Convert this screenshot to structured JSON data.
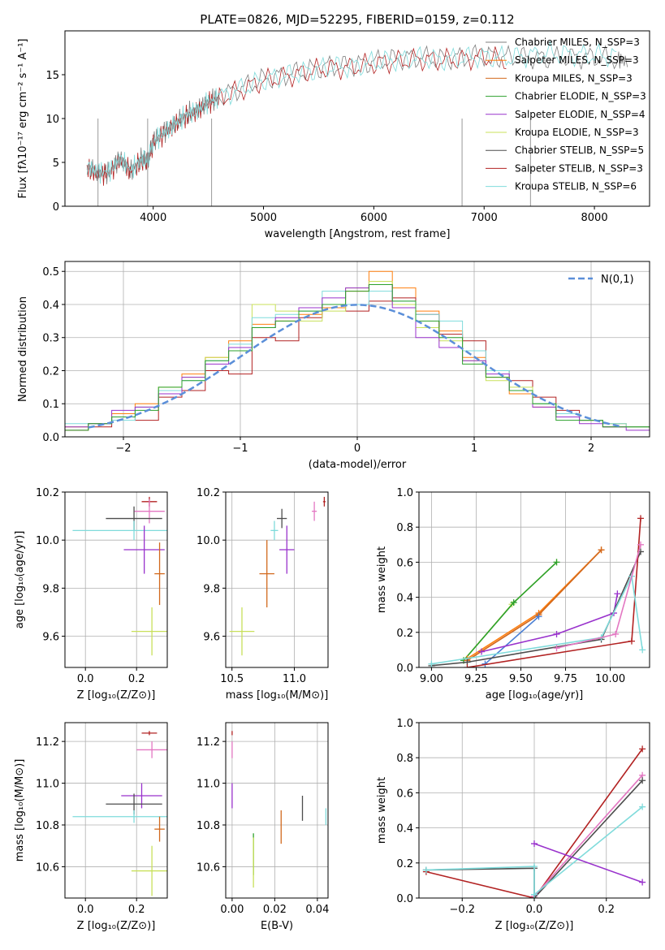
{
  "figure": {
    "title": "PLATE=0826, MJD=52295, FIBERID=0159, z=0.112"
  },
  "colors": {
    "gray": "#7f7f7f",
    "orange": "#ff7f0e",
    "dark_orange": "#d2691e",
    "green": "#2ca02c",
    "purple": "#9932cc",
    "lime": "#c8e05a",
    "dark_gray": "#4d4d4d",
    "dark_red": "#b22222",
    "cyan": "#7fdbdb",
    "pink": "#e377c2",
    "blue": "#4a7fd4",
    "gauss": "#5b8fd9",
    "grid": "#b0b0b0"
  },
  "chart_data": [
    {
      "id": "spectrum",
      "type": "line",
      "xlabel": "wavelength [Angstrom, rest frame]",
      "ylabel": "Flux [fλ10⁻¹⁷ erg cm⁻² s⁻¹ A⁻¹]",
      "xlim": [
        3200,
        8500
      ],
      "ylim": [
        0,
        20
      ],
      "xticks": [
        4000,
        5000,
        6000,
        7000,
        8000
      ],
      "yticks": [
        0,
        5,
        10,
        15
      ],
      "grid": false,
      "legend_position": "upper-right",
      "legend": [
        {
          "label": "Chabrier MILES, N_SSP=3",
          "color": "#7f7f7f"
        },
        {
          "label": "Salpeter MILES, N_SSP=3",
          "color": "#ff7f0e"
        },
        {
          "label": "Kroupa MILES, N_SSP=3",
          "color": "#d2691e"
        },
        {
          "label": "Chabrier ELODIE, N_SSP=3",
          "color": "#2ca02c"
        },
        {
          "label": "Salpeter ELODIE, N_SSP=4",
          "color": "#9932cc"
        },
        {
          "label": "Kroupa ELODIE, N_SSP=3",
          "color": "#c8e05a"
        },
        {
          "label": "Chabrier STELIB, N_SSP=5",
          "color": "#4d4d4d"
        },
        {
          "label": "Salpeter STELIB, N_SSP=3",
          "color": "#b22222"
        },
        {
          "label": "Kroupa STELIB, N_SSP=6",
          "color": "#7fdbdb"
        }
      ],
      "series": [
        {
          "color": "#7f7f7f",
          "x": [
            3400,
            3500,
            3600,
            3700,
            3800,
            3900,
            3950,
            4000,
            4100,
            4200,
            4300,
            4400,
            4500,
            4600,
            4800,
            5000,
            5200,
            5400,
            5600,
            5800,
            6000,
            6200,
            6400,
            6600,
            6800,
            7000,
            7200,
            7400,
            7600,
            7800,
            8000,
            8200,
            8300
          ],
          "y": [
            4.5,
            3.8,
            3.9,
            5.5,
            4.0,
            5.5,
            5.2,
            7.5,
            8.5,
            9.5,
            10.5,
            11,
            12,
            12.5,
            13.5,
            14.5,
            15,
            15.5,
            16,
            16,
            16.5,
            16.8,
            17,
            16.8,
            17,
            17.2,
            17,
            17,
            16.8,
            17,
            17,
            16.8,
            16.5
          ]
        },
        {
          "color": "#b22222",
          "x": [
            3400,
            3500,
            3600,
            3700,
            3800,
            3900,
            3950,
            4000,
            4100,
            4200,
            4300,
            4400,
            4500,
            4600,
            4800,
            5000,
            5200,
            5400,
            5600,
            5800,
            6000,
            6200,
            6400,
            6600,
            6800,
            7000,
            7200
          ],
          "y": [
            4.3,
            3.6,
            3.8,
            5.2,
            3.9,
            5.3,
            5.0,
            7.2,
            8.3,
            9.3,
            10.2,
            10.8,
            11.8,
            12.3,
            13.3,
            14.3,
            14.8,
            15.3,
            15.8,
            15.8,
            16.3,
            16.5,
            16.8,
            16.6,
            16.8,
            17.0,
            16.7
          ]
        },
        {
          "color": "#7fdbdb",
          "x": [
            3400,
            3500,
            3600,
            3700,
            3800,
            3900,
            3950,
            4000,
            4100,
            4200,
            4300,
            4400,
            4500,
            4600,
            4800,
            5000,
            5200,
            5400,
            5600,
            5800,
            6000,
            6200,
            6400,
            6600,
            6800,
            7000,
            7200,
            7400,
            7600,
            7800,
            8000,
            8200
          ],
          "y": [
            4.6,
            3.9,
            4.0,
            5.4,
            4.1,
            5.4,
            5.3,
            7.4,
            8.4,
            9.4,
            10.4,
            10.9,
            11.9,
            12.4,
            13.4,
            14.4,
            14.9,
            15.4,
            15.9,
            15.9,
            16.4,
            16.7,
            16.9,
            16.7,
            16.9,
            17.1,
            16.9,
            17.2,
            17.4,
            17.3,
            17.2,
            17.1
          ]
        }
      ]
    },
    {
      "id": "residuals",
      "type": "line",
      "xlabel": "(data-model)/error",
      "ylabel": "Normed distribution",
      "xlim": [
        -2.5,
        2.5
      ],
      "ylim": [
        0,
        0.53
      ],
      "xticks": [
        -2,
        -1,
        0,
        1,
        2
      ],
      "yticks": [
        0.0,
        0.1,
        0.2,
        0.3,
        0.4,
        0.5
      ],
      "grid": true,
      "legend_position": "upper-right",
      "legend": [
        {
          "label": "N(0,1)",
          "color": "#5b8fd9",
          "style": "dashed"
        }
      ],
      "x": [
        -2.4,
        -2.2,
        -2.0,
        -1.8,
        -1.6,
        -1.4,
        -1.2,
        -1.0,
        -0.8,
        -0.6,
        -0.4,
        -0.2,
        0.0,
        0.2,
        0.4,
        0.6,
        0.8,
        1.0,
        1.2,
        1.4,
        1.6,
        1.8,
        2.0,
        2.2,
        2.4
      ],
      "series": [
        {
          "color": "#ff7f0e",
          "values": [
            0.03,
            0.04,
            0.07,
            0.1,
            0.14,
            0.19,
            0.24,
            0.29,
            0.34,
            0.35,
            0.37,
            0.39,
            0.44,
            0.5,
            0.45,
            0.38,
            0.32,
            0.24,
            0.18,
            0.13,
            0.09,
            0.07,
            0.05,
            0.04,
            0.03
          ]
        },
        {
          "color": "#b22222",
          "values": [
            0.02,
            0.03,
            0.06,
            0.05,
            0.12,
            0.14,
            0.2,
            0.19,
            0.3,
            0.29,
            0.36,
            0.4,
            0.38,
            0.41,
            0.42,
            0.37,
            0.31,
            0.29,
            0.2,
            0.17,
            0.12,
            0.08,
            0.05,
            0.03,
            0.03
          ]
        },
        {
          "color": "#c8e05a",
          "values": [
            0.03,
            0.04,
            0.06,
            0.09,
            0.15,
            0.18,
            0.24,
            0.26,
            0.4,
            0.38,
            0.35,
            0.38,
            0.45,
            0.47,
            0.4,
            0.33,
            0.29,
            0.23,
            0.17,
            0.15,
            0.1,
            0.07,
            0.05,
            0.04,
            0.03
          ]
        },
        {
          "color": "#7fdbdb",
          "values": [
            0.04,
            0.04,
            0.05,
            0.09,
            0.14,
            0.17,
            0.23,
            0.28,
            0.36,
            0.37,
            0.38,
            0.44,
            0.4,
            0.44,
            0.41,
            0.37,
            0.35,
            0.26,
            0.2,
            0.14,
            0.1,
            0.07,
            0.05,
            0.04,
            0.03
          ]
        },
        {
          "color": "#9932cc",
          "values": [
            0.03,
            0.04,
            0.08,
            0.09,
            0.13,
            0.18,
            0.22,
            0.27,
            0.33,
            0.36,
            0.39,
            0.42,
            0.45,
            0.46,
            0.39,
            0.3,
            0.27,
            0.23,
            0.19,
            0.14,
            0.09,
            0.06,
            0.04,
            0.03,
            0.02
          ]
        },
        {
          "color": "#2ca02c",
          "values": [
            0.02,
            0.04,
            0.06,
            0.08,
            0.15,
            0.17,
            0.23,
            0.26,
            0.33,
            0.35,
            0.38,
            0.4,
            0.44,
            0.46,
            0.41,
            0.35,
            0.3,
            0.22,
            0.18,
            0.14,
            0.1,
            0.05,
            0.05,
            0.03,
            0.03
          ]
        }
      ],
      "gaussian": {
        "mu": 0,
        "sigma": 1
      }
    },
    {
      "id": "age_vs_Z",
      "type": "scatter",
      "xlabel": "Z [log₁₀(Z/Z⊙)]",
      "ylabel": "age  [log₁₀(age/yr)]",
      "xlim": [
        -0.08,
        0.32
      ],
      "ylim": [
        9.47,
        10.2
      ],
      "xticks": [
        0.0,
        0.2
      ],
      "yticks": [
        9.6,
        9.8,
        10.0,
        10.2
      ],
      "grid": true,
      "points": [
        {
          "color": "#b22222",
          "x": 0.25,
          "xerr": 0.03,
          "y": 10.16,
          "yerr": 0.02
        },
        {
          "color": "#e377c2",
          "x": 0.25,
          "xerr": 0.06,
          "y": 10.12,
          "yerr": 0.05
        },
        {
          "color": "#4d4d4d",
          "x": 0.19,
          "xerr": 0.11,
          "y": 10.09,
          "yerr": 0.05
        },
        {
          "color": "#7fdbdb",
          "x": 0.19,
          "xerr": 0.24,
          "y": 10.04,
          "yerr": 0.04
        },
        {
          "color": "#9932cc",
          "x": 0.23,
          "xerr": 0.08,
          "y": 9.96,
          "yerr": 0.1
        },
        {
          "color": "#d2691e",
          "x": 0.29,
          "xerr": 0.02,
          "y": 9.86,
          "yerr": 0.13
        },
        {
          "color": "#c8e05a",
          "x": 0.26,
          "xerr": 0.08,
          "y": 9.62,
          "yerr": 0.1
        }
      ]
    },
    {
      "id": "age_vs_mass",
      "type": "scatter",
      "xlabel": "mass [log₁₀(M/M⊙)]",
      "ylabel": "",
      "xlim": [
        10.45,
        11.27
      ],
      "ylim": [
        9.47,
        10.2
      ],
      "xticks": [
        10.5,
        11.0
      ],
      "yticks": [
        9.6,
        9.8,
        10.0,
        10.2
      ],
      "grid": true,
      "points": [
        {
          "color": "#b22222",
          "x": 11.24,
          "xerr": 0.01,
          "y": 10.16,
          "yerr": 0.02
        },
        {
          "color": "#e377c2",
          "x": 11.16,
          "xerr": 0.02,
          "y": 10.12,
          "yerr": 0.04
        },
        {
          "color": "#4d4d4d",
          "x": 10.9,
          "xerr": 0.04,
          "y": 10.09,
          "yerr": 0.04
        },
        {
          "color": "#7fdbdb",
          "x": 10.84,
          "xerr": 0.03,
          "y": 10.04,
          "yerr": 0.04
        },
        {
          "color": "#9932cc",
          "x": 10.94,
          "xerr": 0.06,
          "y": 9.96,
          "yerr": 0.1
        },
        {
          "color": "#d2691e",
          "x": 10.78,
          "xerr": 0.06,
          "y": 9.86,
          "yerr": 0.14
        },
        {
          "color": "#c8e05a",
          "x": 10.58,
          "xerr": 0.1,
          "y": 9.62,
          "yerr": 0.1
        }
      ]
    },
    {
      "id": "massweight_vs_age",
      "type": "line",
      "xlabel": "age  [log₁₀(age/yr)]",
      "ylabel": "mass weight",
      "xlim": [
        8.93,
        10.22
      ],
      "ylim": [
        0,
        1.0
      ],
      "xticks": [
        9.0,
        9.25,
        9.5,
        9.75,
        10.0
      ],
      "yticks": [
        0.0,
        0.2,
        0.4,
        0.6,
        0.8,
        1.0
      ],
      "grid": true,
      "series": [
        {
          "color": "#c8e05a",
          "x": [
            9.18,
            9.45,
            9.7
          ],
          "y": [
            0.04,
            0.36,
            0.6
          ]
        },
        {
          "color": "#2ca02c",
          "x": [
            9.18,
            9.46,
            9.7
          ],
          "y": [
            0.04,
            0.37,
            0.6
          ]
        },
        {
          "color": "#ff7f0e",
          "x": [
            9.2,
            9.6,
            9.95
          ],
          "y": [
            0.05,
            0.31,
            0.67
          ]
        },
        {
          "color": "#d2691e",
          "x": [
            9.2,
            9.6,
            9.95
          ],
          "y": [
            0.04,
            0.3,
            0.67
          ]
        },
        {
          "color": "#4a7fd4",
          "x": [
            9.3,
            9.6
          ],
          "y": [
            0.02,
            0.29
          ]
        },
        {
          "color": "#9932cc",
          "x": [
            9.28,
            9.7,
            10.02,
            10.04
          ],
          "y": [
            0.09,
            0.19,
            0.31,
            0.42
          ]
        },
        {
          "color": "#4d4d4d",
          "x": [
            9.0,
            9.2,
            9.95,
            10.17
          ],
          "y": [
            0.01,
            0.03,
            0.16,
            0.66
          ]
        },
        {
          "color": "#b22222",
          "x": [
            9.2,
            10.12,
            10.17
          ],
          "y": [
            0.0,
            0.15,
            0.85
          ]
        },
        {
          "color": "#7fdbdb",
          "x": [
            9.0,
            9.95,
            10.12,
            10.18
          ],
          "y": [
            0.02,
            0.17,
            0.52,
            0.1
          ]
        },
        {
          "color": "#e377c2",
          "x": [
            9.7,
            10.03,
            10.17
          ],
          "y": [
            0.11,
            0.19,
            0.7
          ]
        }
      ]
    },
    {
      "id": "mass_vs_Z",
      "type": "scatter",
      "xlabel": "Z [log₁₀(Z/Z⊙)]",
      "ylabel": "mass [log₁₀(M/M⊙)]",
      "xlim": [
        -0.08,
        0.32
      ],
      "ylim": [
        10.45,
        11.29
      ],
      "xticks": [
        0.0,
        0.2
      ],
      "yticks": [
        10.6,
        10.8,
        11.0,
        11.2
      ],
      "grid": true,
      "points": [
        {
          "color": "#b22222",
          "x": 0.25,
          "xerr": 0.03,
          "y": 11.24,
          "yerr": 0.01
        },
        {
          "color": "#e377c2",
          "x": 0.26,
          "xerr": 0.06,
          "y": 11.16,
          "yerr": 0.04
        },
        {
          "color": "#9932cc",
          "x": 0.22,
          "xerr": 0.08,
          "y": 10.94,
          "yerr": 0.06
        },
        {
          "color": "#4d4d4d",
          "x": 0.19,
          "xerr": 0.11,
          "y": 10.9,
          "yerr": 0.05
        },
        {
          "color": "#7fdbdb",
          "x": 0.19,
          "xerr": 0.24,
          "y": 10.84,
          "yerr": 0.03
        },
        {
          "color": "#d2691e",
          "x": 0.29,
          "xerr": 0.02,
          "y": 10.78,
          "yerr": 0.06
        },
        {
          "color": "#c8e05a",
          "x": 0.26,
          "xerr": 0.08,
          "y": 10.58,
          "yerr": 0.12
        }
      ]
    },
    {
      "id": "mass_vs_ebv",
      "type": "scatter",
      "xlabel": "E(B-V)",
      "ylabel": "",
      "xlim": [
        -0.003,
        0.045
      ],
      "ylim": [
        10.45,
        11.29
      ],
      "xticks": [
        0.0,
        0.02,
        0.04
      ],
      "yticks": [
        10.6,
        10.8,
        11.0,
        11.2
      ],
      "grid": true,
      "points": [
        {
          "color": "#b22222",
          "x": 0.0,
          "xerr": 0.0,
          "y": 11.24,
          "yerr": 0.01
        },
        {
          "color": "#e377c2",
          "x": 0.0,
          "xerr": 0.0,
          "y": 11.16,
          "yerr": 0.04
        },
        {
          "color": "#9932cc",
          "x": 0.0,
          "xerr": 0.0,
          "y": 10.94,
          "yerr": 0.06
        },
        {
          "color": "#4d4d4d",
          "x": 0.033,
          "xerr": 0.0,
          "y": 10.88,
          "yerr": 0.06
        },
        {
          "color": "#7fdbdb",
          "x": 0.044,
          "xerr": 0.0,
          "y": 10.84,
          "yerr": 0.04
        },
        {
          "color": "#d2691e",
          "x": 0.023,
          "xerr": 0.0,
          "y": 10.79,
          "yerr": 0.08
        },
        {
          "color": "#2ca02c",
          "x": 0.01,
          "xerr": 0.0,
          "y": 10.66,
          "yerr": 0.1
        },
        {
          "color": "#c8e05a",
          "x": 0.01,
          "xerr": 0.0,
          "y": 10.62,
          "yerr": 0.12
        }
      ]
    },
    {
      "id": "massweight_vs_Z",
      "type": "line",
      "xlabel": "Z [log₁₀(Z/Z⊙)]",
      "ylabel": "mass weight",
      "xlim": [
        -0.32,
        0.32
      ],
      "ylim": [
        0,
        1.0
      ],
      "xticks": [
        -0.2,
        0.0,
        0.2
      ],
      "yticks": [
        0.0,
        0.2,
        0.4,
        0.6,
        0.8,
        1.0
      ],
      "grid": true,
      "series": [
        {
          "color": "#b22222",
          "x": [
            -0.3,
            0.0,
            0.3
          ],
          "y": [
            0.15,
            0.0,
            0.85
          ]
        },
        {
          "color": "#e377c2",
          "x": [
            0.0,
            0.3
          ],
          "y": [
            0.01,
            0.7
          ]
        },
        {
          "color": "#4d4d4d",
          "x": [
            -0.3,
            0.0,
            0.0,
            0.3
          ],
          "y": [
            0.16,
            0.17,
            0.0,
            0.67
          ]
        },
        {
          "color": "#7fdbdb",
          "x": [
            -0.3,
            0.0,
            0.0,
            0.3
          ],
          "y": [
            0.16,
            0.18,
            0.02,
            0.52
          ]
        },
        {
          "color": "#9932cc",
          "x": [
            0.0,
            0.3
          ],
          "y": [
            0.31,
            0.09
          ]
        }
      ]
    }
  ]
}
